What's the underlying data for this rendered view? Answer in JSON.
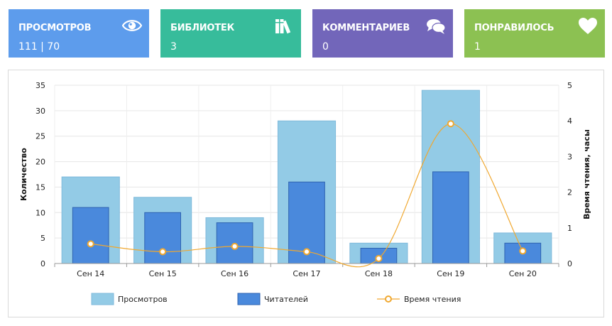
{
  "cards": [
    {
      "label": "ПРОСМОТРОВ",
      "value": "111 | 70",
      "icon": "eye-icon",
      "color": "#5d9cec"
    },
    {
      "label": "БИБЛИОТЕК",
      "value": "3",
      "icon": "books-icon",
      "color": "#37bc9b"
    },
    {
      "label": "КОММЕНТАРИЕВ",
      "value": "0",
      "icon": "comments-icon",
      "color": "#7266ba"
    },
    {
      "label": "ПОНРАВИЛОСЬ",
      "value": "1",
      "icon": "heart-icon",
      "color": "#8cc152"
    }
  ],
  "chart_data": {
    "type": "bar",
    "categories": [
      "Сен 14",
      "Сен 15",
      "Сен 16",
      "Сен 17",
      "Сен 18",
      "Сен 19",
      "Сен 20"
    ],
    "series": [
      {
        "name": "Просмотров",
        "type": "bar",
        "axis": "left",
        "values": [
          17,
          13,
          9,
          28,
          4,
          34,
          6
        ],
        "color": "#93cbe6"
      },
      {
        "name": "Читателей",
        "type": "bar",
        "axis": "left",
        "values": [
          11,
          10,
          8,
          16,
          3,
          18,
          4
        ],
        "color": "#4a89dc"
      },
      {
        "name": "Время чтения",
        "type": "line",
        "axis": "right",
        "values": [
          0.55,
          0.33,
          0.48,
          0.33,
          0.14,
          3.92,
          0.35
        ],
        "color": "#f0a830"
      }
    ],
    "ylabel": "Количество",
    "y2label": "Время чтения, часы",
    "ylim": [
      0,
      35
    ],
    "y2lim": [
      0,
      5
    ],
    "yticks": [
      "0",
      "5",
      "10",
      "15",
      "20",
      "25",
      "30",
      "35"
    ],
    "y2ticks": [
      "0",
      "1",
      "2",
      "3",
      "4",
      "5"
    ],
    "grid": true,
    "legend": "bottom"
  }
}
